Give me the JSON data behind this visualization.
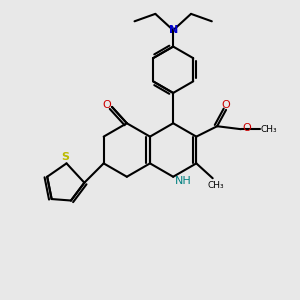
{
  "bg_color": "#e8e8e8",
  "bond_color": "#000000",
  "bond_width": 1.5,
  "N_color": "#0000cc",
  "O_color": "#cc0000",
  "S_color": "#bbbb00",
  "NH_color": "#008080",
  "figsize": [
    3.0,
    3.0
  ],
  "dpi": 100,
  "xlim": [
    0,
    10
  ],
  "ylim": [
    0,
    10
  ]
}
